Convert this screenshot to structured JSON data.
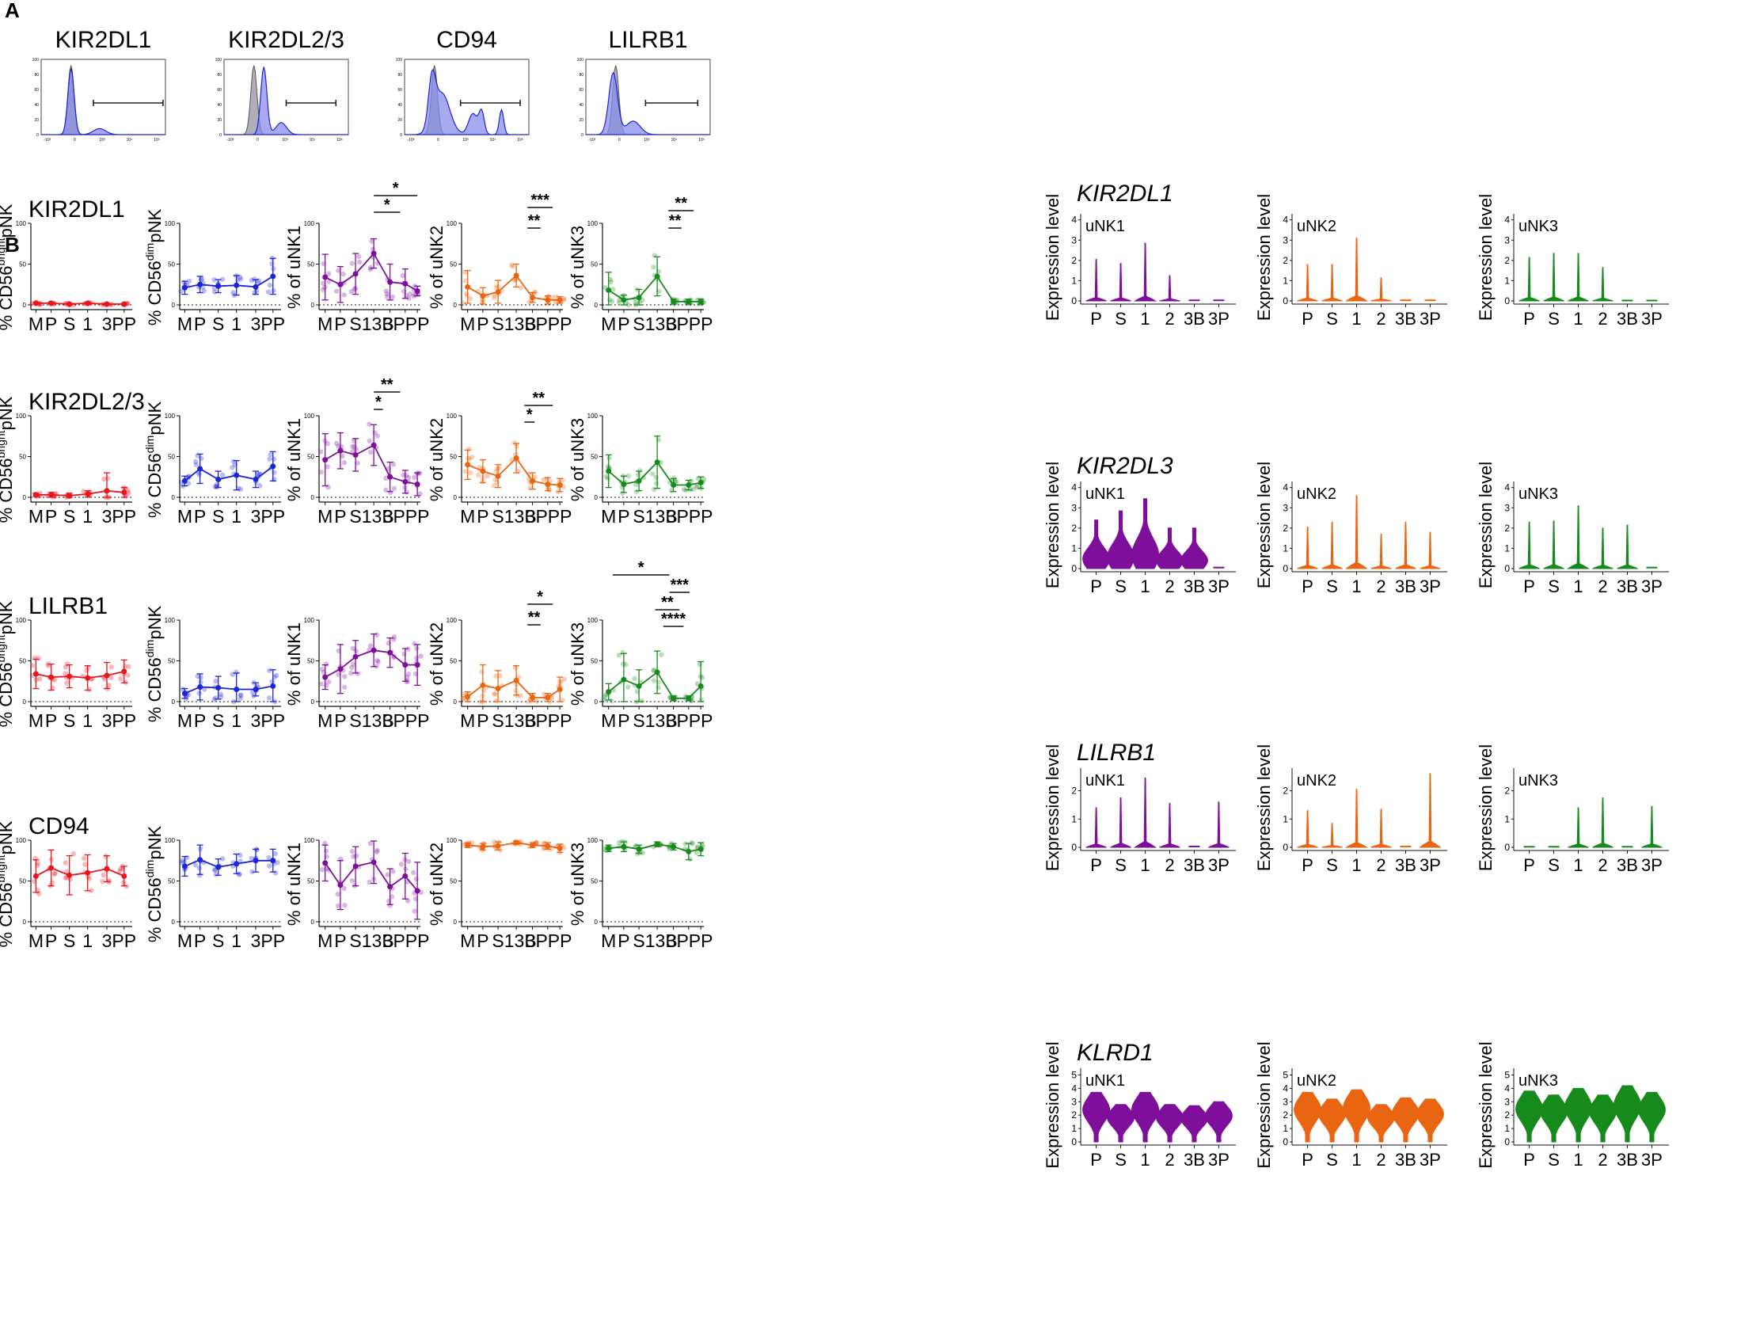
{
  "colors": {
    "red": "#e8141e",
    "blue": "#1a25d6",
    "purple": "#7e0f9a",
    "orange": "#ea6512",
    "green": "#178a1c",
    "flow_fill": "#8a8ee8",
    "flow_gray": "#8f8c9a"
  },
  "panels": {
    "a": "A",
    "b": "B"
  },
  "flow": {
    "titles": [
      "KIR2DL1",
      "KIR2DL2/3",
      "CD94",
      "LILRB1"
    ],
    "y_ticks": [
      "100",
      "80",
      "60",
      "40",
      "20",
      "0"
    ],
    "x_ticks": [
      "-10³",
      "0",
      "10³",
      "10⁴",
      "10⁵"
    ]
  },
  "chart_data": {
    "type": "line",
    "scatter_categories": {
      "pnk": [
        "M",
        "P",
        "S",
        "1",
        "3",
        "PP"
      ],
      "unk": [
        "M",
        "P",
        "S",
        "1",
        "3",
        "B",
        "3",
        "P",
        "P",
        "P"
      ]
    },
    "scatter_xlabels": {
      "pnk": [
        "M",
        "P",
        "S",
        "1",
        "3",
        "PP"
      ],
      "unk": [
        "M",
        "P",
        "S",
        "13B",
        "3PPP"
      ]
    },
    "ylim": [
      0,
      100
    ],
    "y_ticks": [
      "0",
      "50",
      "100"
    ],
    "ylabels": {
      "bright": {
        "pre": "% CD56",
        "sup": "bright",
        "post": "pNK"
      },
      "dim": {
        "pre": "% CD56",
        "sup": "dim",
        "post": "pNK"
      },
      "unk1": "% of uNK1",
      "unk2": "% of uNK2",
      "unk3": "% of uNK3"
    },
    "rows": [
      {
        "marker": "KIR2DL1",
        "series": [
          {
            "name": "CD56bright pNK",
            "means": [
              2,
              2,
              1,
              2,
              1,
              1
            ],
            "err": [
              1,
              1,
              1,
              1,
              1,
              1
            ]
          },
          {
            "name": "CD56dim pNK",
            "means": [
              21,
              25,
              23,
              24,
              22,
              35
            ],
            "err": [
              8,
              10,
              8,
              12,
              9,
              22
            ]
          },
          {
            "name": "uNK1",
            "means": [
              34,
              25,
              38,
              63,
              28,
              26,
              17
            ],
            "err": [
              28,
              22,
              25,
              18,
              22,
              18,
              6
            ]
          },
          {
            "name": "uNK2",
            "means": [
              22,
              11,
              16,
              36,
              9,
              6,
              6
            ],
            "err": [
              20,
              10,
              14,
              14,
              6,
              5,
              4
            ]
          },
          {
            "name": "uNK3",
            "means": [
              18,
              6,
              9,
              35,
              4,
              4,
              4
            ],
            "err": [
              22,
              6,
              10,
              24,
              3,
              3,
              3
            ]
          }
        ],
        "significance": [
          {
            "chart": "uNK1",
            "label": "*"
          },
          {
            "chart": "uNK1",
            "label": "*"
          },
          {
            "chart": "uNK2",
            "label": "***"
          },
          {
            "chart": "uNK2",
            "label": "**"
          },
          {
            "chart": "uNK3",
            "label": "**"
          },
          {
            "chart": "uNK3",
            "label": "**"
          }
        ]
      },
      {
        "marker": "KIR2DL2/3",
        "series": [
          {
            "name": "CD56bright pNK",
            "means": [
              3,
              3,
              2,
              4,
              8,
              6
            ],
            "err": [
              2,
              3,
              3,
              4,
              22,
              6
            ]
          },
          {
            "name": "CD56dim pNK",
            "means": [
              20,
              35,
              22,
              27,
              22,
              38
            ],
            "err": [
              6,
              18,
              10,
              18,
              10,
              18
            ]
          },
          {
            "name": "uNK1",
            "means": [
              46,
              57,
              52,
              64,
              25,
              19,
              16
            ],
            "err": [
              32,
              22,
              20,
              25,
              18,
              14,
              14
            ]
          },
          {
            "name": "uNK2",
            "means": [
              40,
              32,
              26,
              48,
              20,
              16,
              15
            ],
            "err": [
              18,
              14,
              14,
              18,
              10,
              8,
              8
            ]
          },
          {
            "name": "uNK3",
            "means": [
              32,
              16,
              20,
              43,
              15,
              15,
              18
            ],
            "err": [
              20,
              10,
              12,
              32,
              8,
              6,
              7
            ]
          }
        ],
        "significance": [
          {
            "chart": "uNK1",
            "label": "**"
          },
          {
            "chart": "uNK1",
            "label": "*"
          },
          {
            "chart": "uNK2",
            "label": "**"
          },
          {
            "chart": "uNK2",
            "label": "*"
          }
        ]
      },
      {
        "marker": "LILRB1",
        "series": [
          {
            "name": "CD56bright pNK",
            "means": [
              34,
              30,
              31,
              29,
              32,
              37
            ],
            "err": [
              18,
              16,
              14,
              15,
              16,
              14
            ]
          },
          {
            "name": "CD56dim pNK",
            "means": [
              10,
              18,
              17,
              15,
              15,
              19
            ],
            "err": [
              6,
              16,
              14,
              20,
              8,
              20
            ]
          },
          {
            "name": "uNK1",
            "means": [
              30,
              40,
              55,
              63,
              60,
              45,
              45
            ],
            "err": [
              15,
              30,
              20,
              20,
              18,
              20,
              25
            ]
          },
          {
            "name": "uNK2",
            "means": [
              6,
              20,
              16,
              26,
              5,
              5,
              15
            ],
            "err": [
              6,
              25,
              22,
              18,
              5,
              5,
              15
            ]
          },
          {
            "name": "uNK3",
            "means": [
              12,
              27,
              19,
              36,
              4,
              4,
              19
            ],
            "err": [
              10,
              32,
              20,
              26,
              3,
              3,
              30
            ]
          }
        ],
        "significance": [
          {
            "chart": "uNK2",
            "label": "*"
          },
          {
            "chart": "uNK2",
            "label": "**"
          },
          {
            "chart": "uNK3",
            "label": "*"
          },
          {
            "chart": "uNK3",
            "label": "***"
          },
          {
            "chart": "uNK3",
            "label": "**"
          },
          {
            "chart": "uNK3",
            "label": "****"
          }
        ]
      },
      {
        "marker": "CD94",
        "series": [
          {
            "name": "CD56bright pNK",
            "means": [
              56,
              66,
              57,
              60,
              65,
              56
            ],
            "err": [
              20,
              22,
              24,
              22,
              16,
              12
            ]
          },
          {
            "name": "CD56dim pNK",
            "means": [
              68,
              76,
              67,
              71,
              75,
              75
            ],
            "err": [
              12,
              18,
              10,
              12,
              14,
              14
            ]
          },
          {
            "name": "uNK1",
            "means": [
              72,
              45,
              68,
              73,
              43,
              56,
              38
            ],
            "err": [
              22,
              30,
              24,
              26,
              22,
              28,
              35
            ]
          },
          {
            "name": "uNK2",
            "means": [
              94,
              92,
              93,
              97,
              94,
              93,
              90
            ],
            "err": [
              3,
              4,
              5,
              2,
              3,
              4,
              5
            ]
          },
          {
            "name": "uNK3",
            "means": [
              90,
              92,
              89,
              95,
              92,
              86,
              89
            ],
            "err": [
              4,
              6,
              5,
              3,
              4,
              10,
              8
            ]
          }
        ],
        "significance": []
      }
    ],
    "violin": {
      "genes": [
        "KIR2DL1",
        "KIR2DL3",
        "LILRB1",
        "KLRD1"
      ],
      "subsets": [
        "uNK1",
        "uNK2",
        "uNK3"
      ],
      "categories": [
        "P",
        "S",
        "1",
        "2",
        "3B",
        "3P"
      ],
      "ylabel": "Expression level",
      "y_ticks": [
        [
          "0",
          "1",
          "2",
          "3",
          "4"
        ],
        [
          "0",
          "1",
          "2",
          "3",
          "4"
        ],
        [
          "0",
          "1",
          "2"
        ],
        [
          "0",
          "1",
          "2",
          "3",
          "4",
          "5"
        ]
      ],
      "ymax": [
        4.3,
        4.3,
        2.8,
        5.5
      ],
      "max_values": [
        [
          [
            2.05,
            1.85,
            2.85,
            1.25,
            0.03,
            0.03
          ],
          [
            1.8,
            1.8,
            3.1,
            1.15,
            0.03,
            0.03
          ],
          [
            2.15,
            2.35,
            2.35,
            1.65,
            0.02,
            0.02
          ]
        ],
        [
          [
            2.4,
            2.85,
            3.45,
            2.0,
            2.0,
            0.05
          ],
          [
            2.05,
            2.3,
            3.6,
            1.7,
            2.3,
            1.8
          ],
          [
            2.3,
            2.35,
            3.1,
            2.0,
            2.15,
            0.05
          ]
        ],
        [
          [
            1.4,
            1.75,
            2.45,
            1.55,
            0.03,
            1.6
          ],
          [
            1.3,
            0.85,
            2.05,
            1.35,
            0.03,
            2.6
          ],
          [
            0.02,
            0.02,
            1.4,
            1.75,
            0.02,
            1.45
          ]
        ],
        [
          [
            3.7,
            2.8,
            3.7,
            2.8,
            2.7,
            3.0
          ],
          [
            3.7,
            3.2,
            3.9,
            2.8,
            3.3,
            3.2
          ],
          [
            3.8,
            3.5,
            4.0,
            3.5,
            4.2,
            3.7
          ]
        ]
      ]
    }
  }
}
